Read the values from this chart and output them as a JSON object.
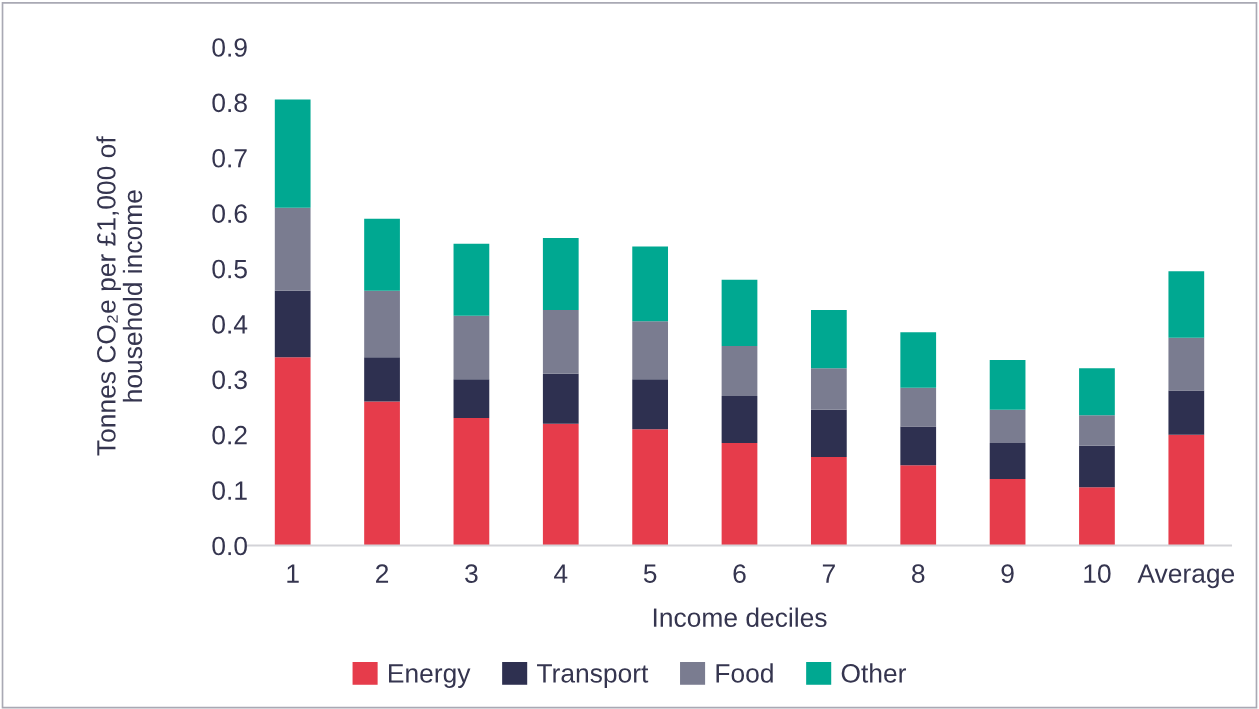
{
  "chart_data": {
    "type": "bar",
    "stacked": true,
    "categories": [
      "1",
      "2",
      "3",
      "4",
      "5",
      "6",
      "7",
      "8",
      "9",
      "10",
      "Average"
    ],
    "series": [
      {
        "name": "Energy",
        "color": "#e63c4b",
        "values": [
          0.34,
          0.26,
          0.23,
          0.22,
          0.21,
          0.185,
          0.16,
          0.145,
          0.12,
          0.105,
          0.2
        ]
      },
      {
        "name": "Transport",
        "color": "#2e3050",
        "values": [
          0.12,
          0.08,
          0.07,
          0.09,
          0.09,
          0.085,
          0.085,
          0.07,
          0.065,
          0.075,
          0.08
        ]
      },
      {
        "name": "Food",
        "color": "#7a7c90",
        "values": [
          0.15,
          0.12,
          0.115,
          0.115,
          0.105,
          0.09,
          0.075,
          0.07,
          0.06,
          0.055,
          0.095
        ]
      },
      {
        "name": "Other",
        "color": "#00a891",
        "values": [
          0.195,
          0.13,
          0.13,
          0.13,
          0.135,
          0.12,
          0.105,
          0.1,
          0.09,
          0.085,
          0.12
        ]
      }
    ],
    "xlabel": "Income deciles",
    "ylabel": "Tonnes CO₂e per £1,000 of\nhousehold income",
    "ylim": [
      0,
      0.9
    ],
    "yticks": [
      {
        "value": 0,
        "label": "0.0"
      },
      0.1,
      0.2,
      0.3,
      0.4,
      0.5,
      0.6,
      0.7,
      0.8,
      0.9
    ],
    "legend": "bottom"
  }
}
